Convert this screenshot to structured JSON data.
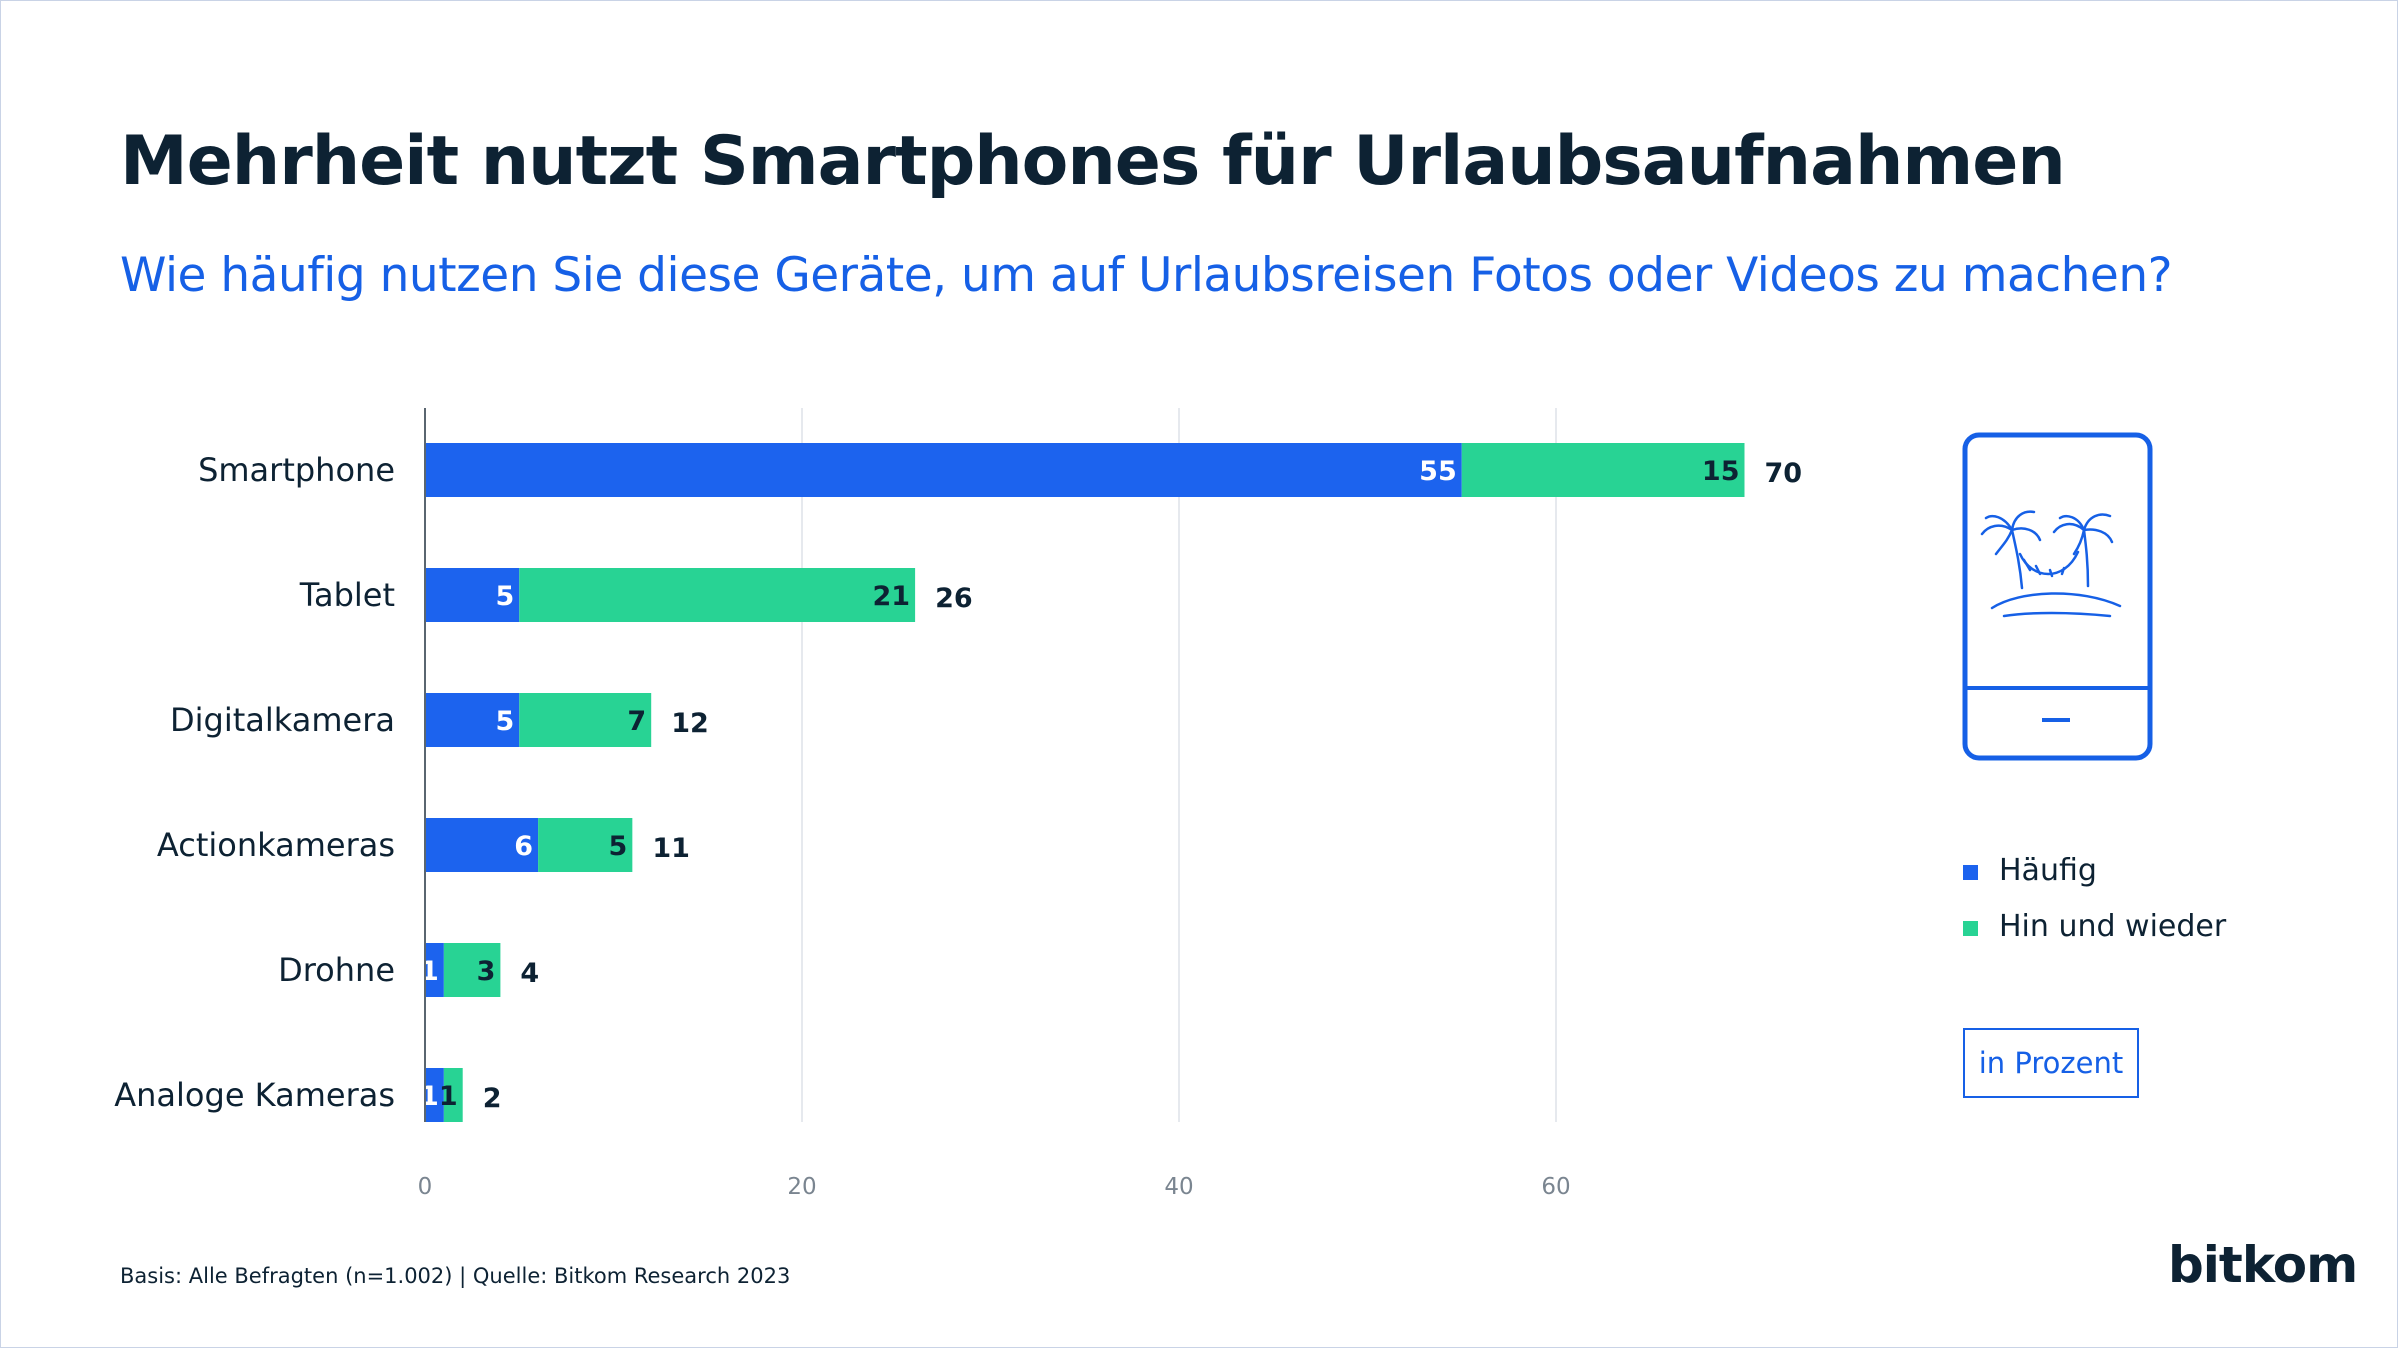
{
  "header": {
    "title": "Mehrheit nutzt Smartphones für Urlaubsaufnahmen",
    "subtitle": "Wie häufig nutzen Sie diese Geräte, um auf Urlaubsreisen Fotos oder Videos zu machen?"
  },
  "chart_data": {
    "type": "bar",
    "orientation": "horizontal",
    "stacked": true,
    "categories": [
      "Smartphone",
      "Tablet",
      "Digitalkamera",
      "Actionkameras",
      "Drohne",
      "Analoge Kameras"
    ],
    "series": [
      {
        "name": "Häufig",
        "values": [
          55,
          5,
          5,
          6,
          1,
          1
        ],
        "color": "#1c63ee"
      },
      {
        "name": "Hin und wieder",
        "values": [
          15,
          21,
          7,
          5,
          3,
          1
        ],
        "color": "#28d394"
      }
    ],
    "totals": [
      70,
      26,
      12,
      11,
      4,
      2
    ],
    "xlim": [
      0,
      75
    ],
    "xticks": [
      0,
      20,
      40,
      60
    ],
    "grid": true,
    "legend_position": "right",
    "unit_label": "in Prozent"
  },
  "icons": {
    "illustration": "smartphone-palm-beach-icon"
  },
  "footer": {
    "source": "Basis: Alle Befragten (n=1.002) | Quelle: Bitkom Research 2023",
    "logo": "bitkom"
  }
}
